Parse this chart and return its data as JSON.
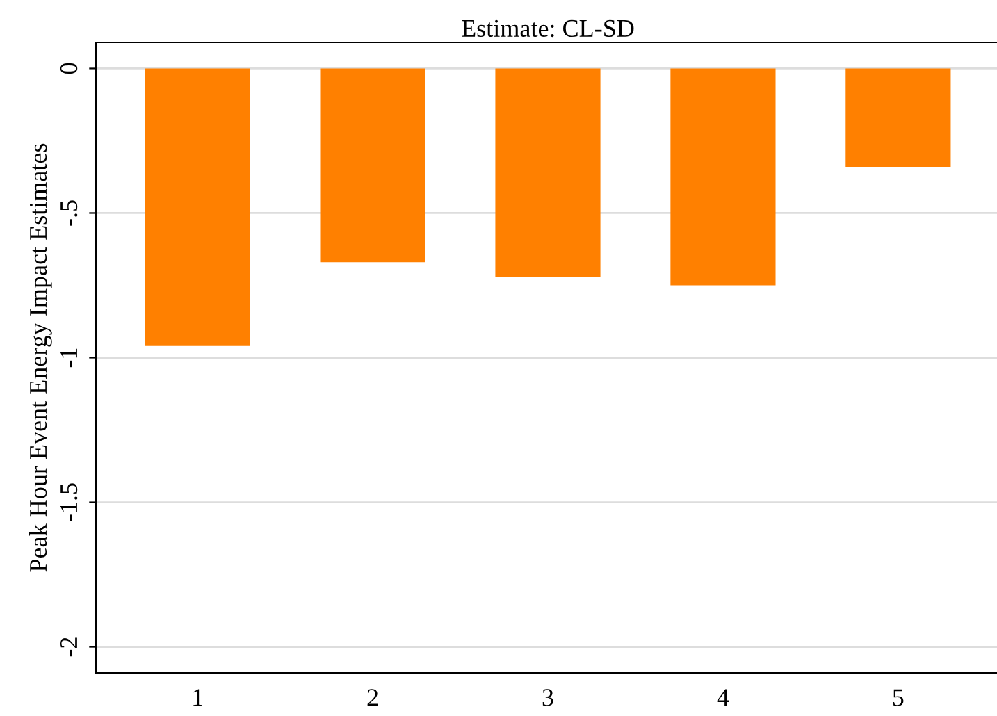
{
  "chart_data": {
    "type": "bar",
    "title": "Estimate: CL-SD",
    "ylabel": "Peak Hour Event Energy Impact Estimates",
    "categories": [
      "1",
      "2",
      "3",
      "4",
      "5"
    ],
    "values": [
      -0.96,
      -0.67,
      -0.72,
      -0.75,
      -0.34
    ],
    "color": "#ff8000",
    "ylim": [
      -2.09,
      0.09
    ],
    "yticks": [
      {
        "value": -2,
        "label": "-2"
      },
      {
        "value": -1.5,
        "label": "-1.5"
      },
      {
        "value": -1,
        "label": "-1"
      },
      {
        "value": -0.5,
        "label": "-.5"
      },
      0
    ],
    "grid": "y"
  }
}
